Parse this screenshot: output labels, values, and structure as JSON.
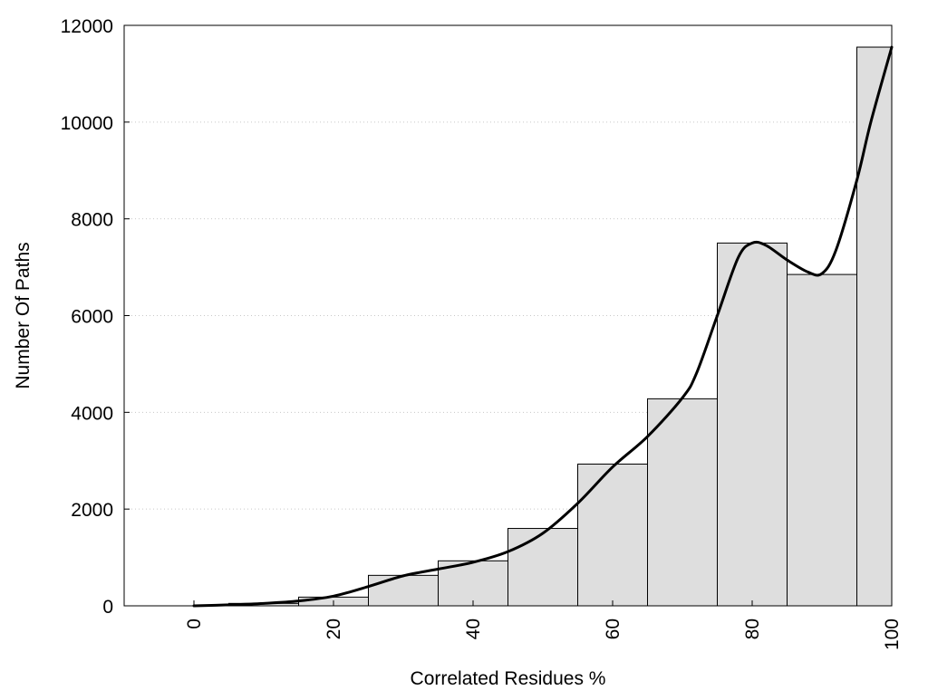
{
  "chart_data": {
    "type": "bar",
    "title": "",
    "xlabel": "Correlated Residues %",
    "ylabel": "Number Of Paths",
    "xlim": [
      -10,
      100
    ],
    "ylim": [
      0,
      12000
    ],
    "x_ticks": [
      "0",
      "20",
      "40",
      "60",
      "80",
      "100"
    ],
    "y_ticks": [
      "0",
      "2000",
      "4000",
      "6000",
      "8000",
      "10000",
      "12000"
    ],
    "grid": "horizontal dotted",
    "bar_color": "#dedede",
    "bar_edge_color": "#000000",
    "curve_color": "#000000",
    "bins": [
      {
        "start": -5,
        "end": 5,
        "value": 0
      },
      {
        "start": 5,
        "end": 15,
        "value": 50
      },
      {
        "start": 15,
        "end": 25,
        "value": 180
      },
      {
        "start": 25,
        "end": 35,
        "value": 630
      },
      {
        "start": 35,
        "end": 45,
        "value": 930
      },
      {
        "start": 45,
        "end": 55,
        "value": 1600
      },
      {
        "start": 55,
        "end": 65,
        "value": 2930
      },
      {
        "start": 65,
        "end": 75,
        "value": 4280
      },
      {
        "start": 75,
        "end": 85,
        "value": 7500
      },
      {
        "start": 85,
        "end": 95,
        "value": 6850
      },
      {
        "start": 95,
        "end": 100,
        "value": 11550
      }
    ],
    "curve": {
      "x": [
        0,
        5,
        10,
        15,
        20,
        25,
        30,
        35,
        40,
        45,
        50,
        55,
        60,
        65,
        70,
        72,
        75,
        78,
        80,
        82,
        85,
        88,
        90,
        92,
        95,
        97,
        100
      ],
      "y": [
        0,
        20,
        50,
        100,
        200,
        400,
        620,
        760,
        900,
        1120,
        1500,
        2120,
        2870,
        3500,
        4300,
        4800,
        6000,
        7200,
        7500,
        7450,
        7150,
        6900,
        6870,
        7350,
        8800,
        10000,
        11550
      ]
    }
  }
}
